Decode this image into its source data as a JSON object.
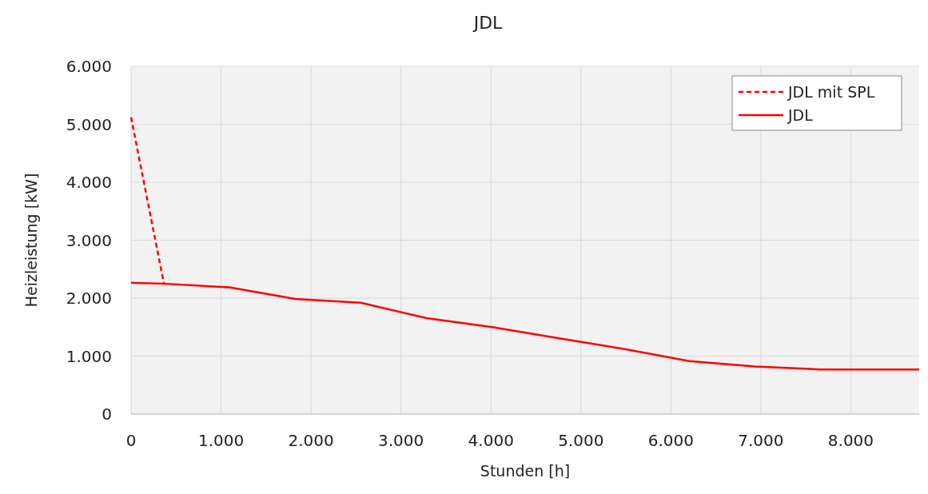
{
  "chart_data": {
    "type": "line",
    "title": "JDL",
    "xlabel": "Stunden [h]",
    "ylabel": "Heizleistung [kW]",
    "xlim": [
      0,
      8760
    ],
    "xticks": [
      {
        "value": 0,
        "label": "0"
      },
      {
        "value": 1000,
        "label": "1.000"
      },
      {
        "value": 2000,
        "label": "2.000"
      },
      {
        "value": 3000,
        "label": "3.000"
      },
      {
        "value": 4000,
        "label": "4.000"
      },
      {
        "value": 5000,
        "label": "5.000"
      },
      {
        "value": 6000,
        "label": "6.000"
      },
      {
        "value": 7000,
        "label": "7.000"
      },
      {
        "value": 8000,
        "label": "8.000"
      }
    ],
    "ylim": [
      0,
      6000
    ],
    "yticks": [
      {
        "value": 0,
        "label": "0"
      },
      {
        "value": 1000,
        "label": "1.000"
      },
      {
        "value": 2000,
        "label": "2.000"
      },
      {
        "value": 3000,
        "label": "3.000"
      },
      {
        "value": 4000,
        "label": "4.000"
      },
      {
        "value": 5000,
        "label": "5.000"
      },
      {
        "value": 6000,
        "label": "6.000"
      }
    ],
    "grid": true,
    "legend": "top right",
    "marker": "none",
    "series": [
      {
        "name": "JDL mit SPL",
        "color": "#ff0000",
        "line_style": "dashed",
        "x": [
          0,
          365
        ],
        "values": [
          5120,
          2250
        ]
      },
      {
        "name": "JDL",
        "color": "#ff0000",
        "line_style": "solid",
        "x": [
          0,
          365,
          1095,
          1825,
          2555,
          3285,
          4015,
          4745,
          5475,
          6205,
          6935,
          7665,
          8760
        ],
        "values": [
          2265,
          2250,
          2185,
          1985,
          1920,
          1655,
          1500,
          1310,
          1125,
          915,
          820,
          770,
          770
        ]
      }
    ]
  }
}
